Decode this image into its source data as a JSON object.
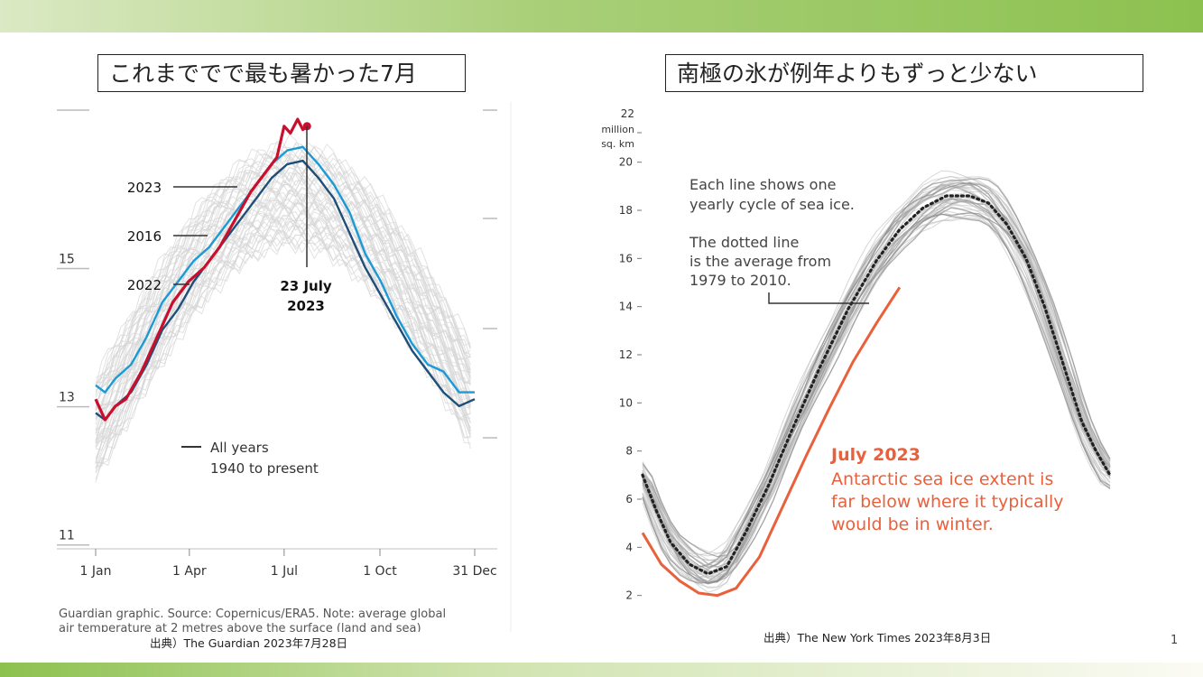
{
  "slide": {
    "left_title": "これまででで最も暑かった7月",
    "right_title": "南極の氷が例年よりもずっと少ない",
    "left_source": "出典）The Guardian 2023年7月28日",
    "right_source": "出典）The New York Times 2023年8月3日",
    "page_number": "1",
    "colors": {
      "accent_green": "#8cc14f",
      "red": "#c8102e",
      "blue": "#1b9ad6",
      "navy": "#1f4e79",
      "orange": "#e8603c"
    }
  },
  "chart_data": [
    {
      "type": "line",
      "title": "",
      "xlabel": "",
      "ylabel": "",
      "x_ticks": [
        "1 Jan",
        "1 Apr",
        "1 Jul",
        "1 Oct",
        "31 Dec"
      ],
      "y_ticks": [
        11,
        13,
        15
      ],
      "ylim": [
        10.8,
        17.2
      ],
      "grid": false,
      "series": [
        {
          "name": "2023",
          "color": "#c8102e",
          "x": [
            1,
            10,
            20,
            30,
            45,
            60,
            75,
            90,
            105,
            120,
            135,
            150,
            165,
            175,
            182,
            188,
            195,
            200,
            204
          ],
          "y": [
            12.9,
            12.6,
            12.8,
            12.9,
            13.3,
            13.8,
            14.3,
            14.6,
            14.8,
            15.1,
            15.5,
            15.9,
            16.2,
            16.4,
            16.85,
            16.75,
            16.95,
            16.8,
            16.85
          ]
        },
        {
          "name": "2016",
          "color": "#1b9ad6",
          "x": [
            1,
            10,
            20,
            35,
            50,
            65,
            80,
            95,
            110,
            125,
            140,
            155,
            170,
            185,
            200,
            215,
            230,
            245,
            260,
            275,
            290,
            305,
            320,
            335,
            350,
            365
          ],
          "y": [
            13.1,
            13.0,
            13.2,
            13.4,
            13.8,
            14.3,
            14.6,
            14.9,
            15.1,
            15.4,
            15.7,
            16.0,
            16.3,
            16.5,
            16.55,
            16.3,
            16.0,
            15.6,
            15.0,
            14.6,
            14.1,
            13.7,
            13.4,
            13.3,
            13.0,
            13.0
          ]
        },
        {
          "name": "2022",
          "color": "#1f4e79",
          "x": [
            1,
            10,
            20,
            35,
            50,
            65,
            80,
            95,
            110,
            125,
            140,
            155,
            170,
            185,
            200,
            215,
            230,
            245,
            260,
            275,
            290,
            305,
            320,
            335,
            350,
            365
          ],
          "y": [
            12.7,
            12.6,
            12.8,
            13.0,
            13.4,
            13.9,
            14.2,
            14.6,
            14.9,
            15.2,
            15.5,
            15.8,
            16.1,
            16.3,
            16.35,
            16.1,
            15.8,
            15.3,
            14.8,
            14.4,
            14.0,
            13.6,
            13.3,
            13.0,
            12.8,
            12.9
          ]
        }
      ],
      "annotations": [
        {
          "label": "2023"
        },
        {
          "label": "2016"
        },
        {
          "label": "2022"
        },
        {
          "label": "23 July"
        },
        {
          "label": "2023"
        },
        {
          "label": "All years"
        },
        {
          "label": "1940 to present"
        }
      ],
      "footnote_line1": "Guardian graphic. Source: Copernicus/ERA5. Note: average global",
      "footnote_line2": "air temperature at 2 metres above the surface (land and sea)"
    },
    {
      "type": "line",
      "title": "",
      "y_unit_label_line1": "22",
      "y_unit_label_line2": "million",
      "y_unit_label_line3": "sq. km",
      "y_ticks": [
        2,
        4,
        6,
        8,
        10,
        12,
        14,
        16,
        18,
        20
      ],
      "ylim": [
        1.5,
        22.5
      ],
      "grid": false,
      "series": [
        {
          "name": "",
          "style": "dotted",
          "color": "#222222",
          "x": [
            0,
            0.03,
            0.06,
            0.1,
            0.14,
            0.18,
            0.22,
            0.27,
            0.32,
            0.38,
            0.44,
            0.5,
            0.55,
            0.6,
            0.65,
            0.7,
            0.74,
            0.78,
            0.82,
            0.86,
            0.9,
            0.94,
            0.97,
            1.0
          ],
          "y": [
            7.0,
            5.5,
            4.2,
            3.3,
            2.9,
            3.2,
            4.6,
            6.6,
            8.9,
            11.5,
            13.9,
            15.9,
            17.2,
            18.1,
            18.6,
            18.6,
            18.3,
            17.4,
            16.0,
            14.0,
            11.6,
            9.2,
            8.0,
            7.0
          ]
        },
        {
          "name": "",
          "style": "solid",
          "color": "#e8603c",
          "x": [
            0,
            0.04,
            0.08,
            0.12,
            0.16,
            0.2,
            0.25,
            0.3,
            0.35,
            0.4,
            0.45,
            0.5,
            0.53,
            0.55
          ],
          "y": [
            4.6,
            3.3,
            2.6,
            2.1,
            2.0,
            2.3,
            3.6,
            5.7,
            7.8,
            9.8,
            11.7,
            13.3,
            14.2,
            14.8
          ]
        }
      ],
      "annotations": [
        {
          "label": "Each line shows one"
        },
        {
          "label": "yearly cycle of sea ice."
        },
        {
          "label": "The dotted line"
        },
        {
          "label": "is the average from"
        },
        {
          "label": "1979 to 2010."
        },
        {
          "label": "July 2023"
        },
        {
          "label": "Antarctic sea ice extent is"
        },
        {
          "label": "far below where it typically"
        },
        {
          "label": "would be in winter."
        }
      ]
    }
  ]
}
